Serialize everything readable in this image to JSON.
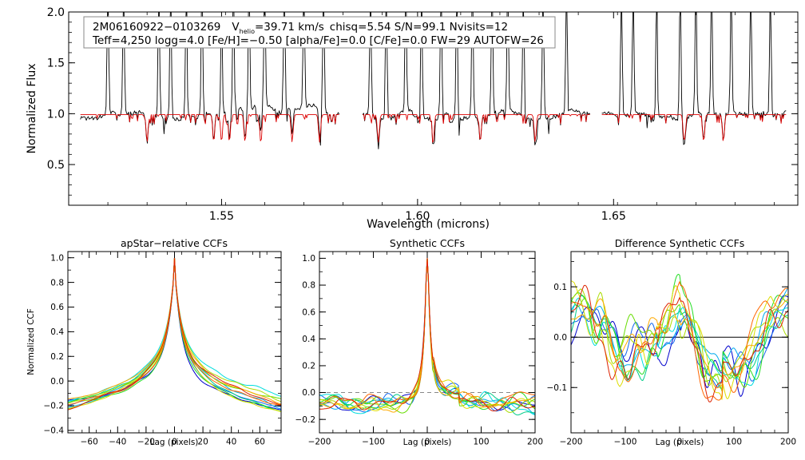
{
  "chart_data": [
    {
      "type": "line",
      "id": "spectrum",
      "xlabel": "Wavelength (microns)",
      "ylabel": "Normalized Flux",
      "xlim": [
        1.511,
        1.697
      ],
      "ylim": [
        0.1,
        2.0
      ],
      "xticks": [
        "1.55",
        "1.60",
        "1.65"
      ],
      "xtick_values": [
        1.55,
        1.6,
        1.65
      ],
      "yticks": [
        "0.5",
        "1.0",
        "1.5",
        "2.0"
      ],
      "ytick_values": [
        0.5,
        1.0,
        1.5,
        2.0
      ],
      "info_line1": {
        "star": "2M06160922−0103269",
        "v_prefix": "V",
        "v_sub": "helio",
        "v_value": "=39.71 km/s",
        "rest": "chisq=5.54  S/N=99.1  Nvisits=12"
      },
      "info_line2": "Teff=4,250 logg=4.0 [Fe/H]=−0.50 [alpha/Fe]=0.0 [C/Fe]=0.0 FW=29 AUTOFW=26",
      "chips": [
        [
          1.514,
          1.58
        ],
        [
          1.586,
          1.644
        ],
        [
          1.647,
          1.694
        ]
      ],
      "series": [
        {
          "name": "observed",
          "color": "#000000"
        },
        {
          "name": "model",
          "color": "#dd0000"
        }
      ],
      "emission_spikes": [
        1.521,
        1.525,
        1.534,
        1.537,
        1.541,
        1.545,
        1.55,
        1.553,
        1.557,
        1.561,
        1.566,
        1.571,
        1.576,
        1.588,
        1.592,
        1.597,
        1.601,
        1.606,
        1.61,
        1.614,
        1.619,
        1.623,
        1.627,
        1.632,
        1.638,
        1.652,
        1.655,
        1.661,
        1.667,
        1.671,
        1.675,
        1.68,
        1.685,
        1.69
      ],
      "absorption_dips": [
        1.531,
        1.548,
        1.55,
        1.552,
        1.556,
        1.56,
        1.568,
        1.575,
        1.59,
        1.604,
        1.616,
        1.63,
        1.668,
        1.673,
        1.678
      ]
    },
    {
      "type": "line",
      "id": "apstar-ccf",
      "title": "apStar−relative CCFs",
      "xlabel": "Lag (pixels)",
      "ylabel": "Normalized CCF",
      "xlim": [
        -75,
        75
      ],
      "ylim": [
        -0.42,
        1.05
      ],
      "xticks": [
        "−60",
        "−40",
        "−20",
        "0",
        "20",
        "40",
        "60"
      ],
      "xtick_values": [
        -60,
        -40,
        -20,
        0,
        20,
        40,
        60
      ],
      "yticks": [
        "−0.4",
        "−0.2",
        "0.0",
        "0.2",
        "0.4",
        "0.6",
        "0.8",
        "1.0"
      ],
      "ytick_values": [
        -0.4,
        -0.2,
        0.0,
        0.2,
        0.4,
        0.6,
        0.8,
        1.0
      ],
      "peak": 1.0,
      "n_series": 12
    },
    {
      "type": "line",
      "id": "synthetic-ccf",
      "title": "Synthetic CCFs",
      "xlabel": "Lag (pixels)",
      "xlim": [
        -200,
        200
      ],
      "ylim": [
        -0.3,
        1.05
      ],
      "xticks": [
        "−200",
        "−100",
        "0",
        "100",
        "200"
      ],
      "xtick_values": [
        -200,
        -100,
        0,
        100,
        200
      ],
      "yticks": [
        "−0.2",
        "0.0",
        "0.2",
        "0.4",
        "0.6",
        "0.8",
        "1.0"
      ],
      "ytick_values": [
        -0.2,
        0.0,
        0.2,
        0.4,
        0.6,
        0.8,
        1.0
      ],
      "baseline": 0.0,
      "peak": 1.0,
      "n_series": 12
    },
    {
      "type": "line",
      "id": "difference-ccf",
      "title": "Difference Synthetic CCFs",
      "xlabel": "Lag (pixels)",
      "xlim": [
        -200,
        200
      ],
      "ylim": [
        -0.19,
        0.17
      ],
      "xticks": [
        "−200",
        "−100",
        "0",
        "100",
        "200"
      ],
      "xtick_values": [
        -200,
        -100,
        0,
        100,
        200
      ],
      "yticks": [
        "−0.1",
        "0.0",
        "0.1"
      ],
      "ytick_values": [
        -0.1,
        0.0,
        0.1
      ],
      "zero_line": 0.0,
      "n_series": 12
    }
  ],
  "palette": [
    "#0000cc",
    "#1166ee",
    "#00aaee",
    "#00dddd",
    "#00cc88",
    "#22dd22",
    "#66dd00",
    "#aadd00",
    "#dddd00",
    "#ffaa00",
    "#ff6600",
    "#dd2200"
  ]
}
